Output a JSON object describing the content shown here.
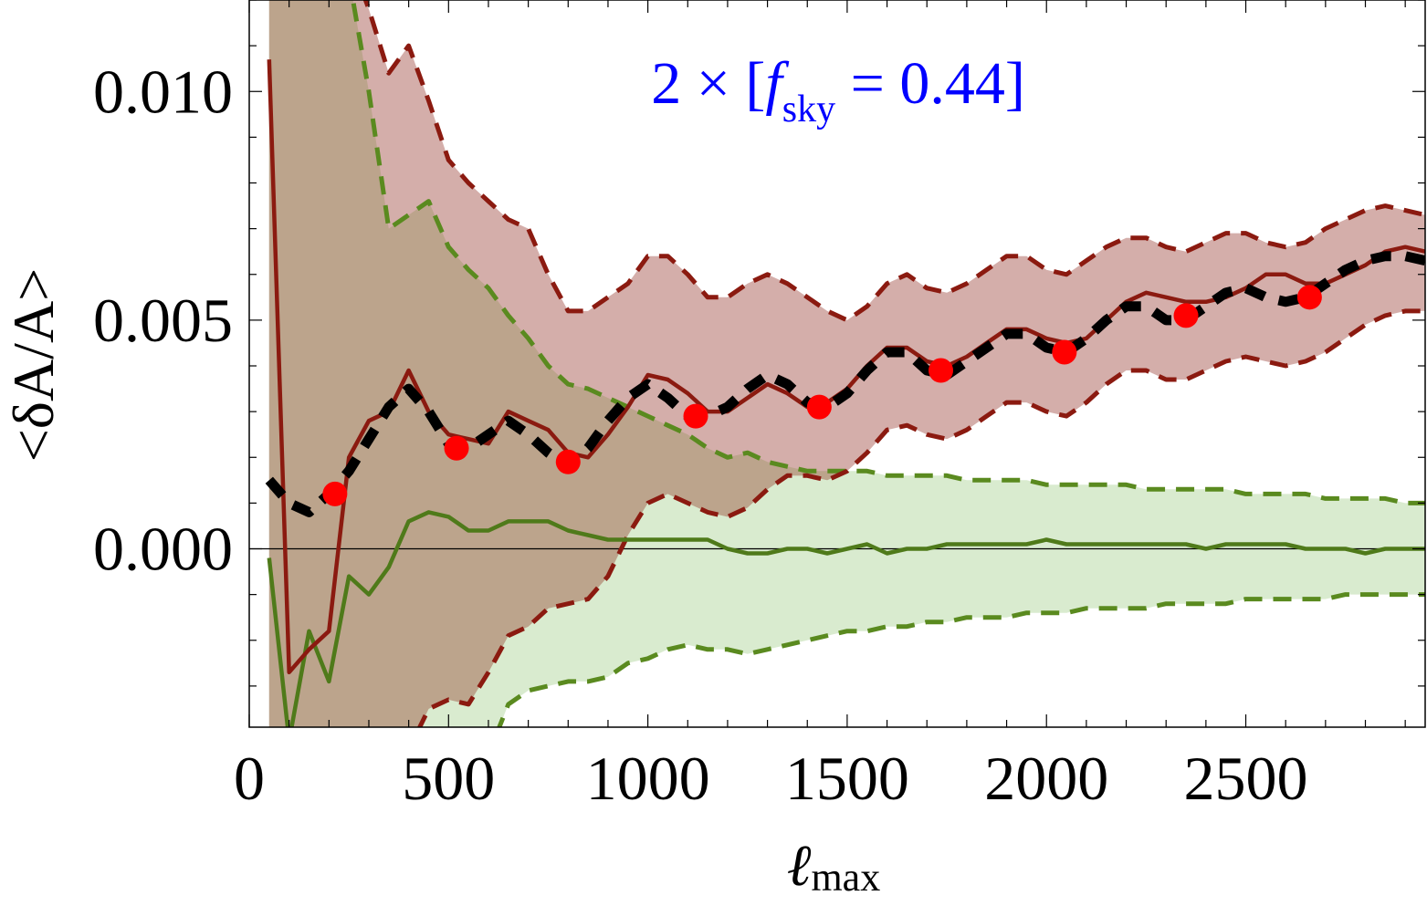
{
  "chart_data": {
    "type": "line",
    "title": "2 × [f_sky = 0.44]",
    "title_parts": {
      "prefix": "2 × [",
      "f": "f",
      "sub": "sky",
      "suffix": " = 0.44]"
    },
    "xlabel": "ℓ_max",
    "xlabel_parts": {
      "main": "ℓ",
      "sub": "max"
    },
    "ylabel": "<δA/A>",
    "xlim": [
      0,
      2950
    ],
    "ylim": [
      -0.0039,
      0.012
    ],
    "x_ticks": [
      0,
      500,
      1000,
      1500,
      2000,
      2500
    ],
    "x_tick_labels": [
      "0",
      "500",
      "1000",
      "1500",
      "2000",
      "2500"
    ],
    "y_ticks": [
      0.0,
      0.005,
      0.01
    ],
    "y_tick_labels": [
      "0.000",
      "0.005",
      "0.010"
    ],
    "grid": false,
    "zero_line": true,
    "colors": {
      "red_line": "#8b1a10",
      "red_band": "#d4aeaa",
      "green_line": "#4f7a1a",
      "green_dash": "#5a8a1f",
      "green_band": "#d9ebcf",
      "overlap_band": "#bca48c",
      "title": "#0000ff",
      "points": "#ff0000",
      "black_dash": "#000000"
    },
    "series": [
      {
        "style": "solid-dark-red",
        "x": [
          50,
          100,
          150,
          200,
          250,
          300,
          350,
          400,
          450,
          500,
          550,
          600,
          650,
          700,
          750,
          800,
          850,
          900,
          950,
          1000,
          1050,
          1100,
          1150,
          1200,
          1250,
          1300,
          1350,
          1400,
          1450,
          1500,
          1550,
          1600,
          1650,
          1700,
          1750,
          1800,
          1850,
          1900,
          1950,
          2000,
          2050,
          2100,
          2150,
          2200,
          2250,
          2300,
          2350,
          2400,
          2450,
          2500,
          2550,
          2600,
          2650,
          2700,
          2750,
          2800,
          2850,
          2900,
          2950
        ],
        "y": [
          0.0107,
          -0.0027,
          -0.0022,
          -0.0018,
          0.002,
          0.0028,
          0.003,
          0.0039,
          0.003,
          0.0025,
          0.0024,
          0.0023,
          0.003,
          0.0028,
          0.0026,
          0.0021,
          0.002,
          0.0025,
          0.0031,
          0.0038,
          0.0037,
          0.0034,
          0.003,
          0.003,
          0.0033,
          0.0036,
          0.0034,
          0.0031,
          0.0032,
          0.0035,
          0.004,
          0.0044,
          0.0044,
          0.0041,
          0.004,
          0.0042,
          0.0045,
          0.0048,
          0.0048,
          0.0046,
          0.0045,
          0.0046,
          0.005,
          0.0054,
          0.0056,
          0.0055,
          0.0054,
          0.0054,
          0.0055,
          0.0057,
          0.006,
          0.006,
          0.0058,
          0.0058,
          0.006,
          0.0062,
          0.0065,
          0.0066,
          0.0065
        ]
      },
      {
        "style": "solid-green",
        "x": [
          50,
          100,
          150,
          200,
          250,
          300,
          350,
          400,
          450,
          500,
          550,
          600,
          650,
          700,
          750,
          800,
          850,
          900,
          950,
          1000,
          1050,
          1100,
          1150,
          1200,
          1250,
          1300,
          1350,
          1400,
          1450,
          1500,
          1550,
          1600,
          1650,
          1700,
          1750,
          1800,
          1850,
          1900,
          1950,
          2000,
          2050,
          2100,
          2150,
          2200,
          2250,
          2300,
          2350,
          2400,
          2450,
          2500,
          2550,
          2600,
          2650,
          2700,
          2750,
          2800,
          2850,
          2900,
          2950
        ],
        "y": [
          -0.0002,
          -0.0042,
          -0.0018,
          -0.0029,
          -0.0006,
          -0.001,
          -0.0004,
          0.0006,
          0.0008,
          0.0007,
          0.0004,
          0.0004,
          0.0006,
          0.0006,
          0.0006,
          0.0004,
          0.0003,
          0.0002,
          0.0002,
          0.0002,
          0.0002,
          0.0002,
          0.0002,
          0.0,
          -0.0001,
          -0.0001,
          0.0,
          0.0,
          -0.0001,
          0.0,
          0.0001,
          -0.0001,
          0.0,
          0.0,
          0.0001,
          0.0001,
          0.0001,
          0.0001,
          0.0001,
          0.0002,
          0.0001,
          0.0001,
          0.0001,
          0.0001,
          0.0001,
          0.0001,
          0.0001,
          0.0,
          0.0001,
          0.0001,
          0.0001,
          0.0001,
          0.0,
          0.0,
          0.0,
          -0.0001,
          0.0,
          0.0,
          0.0
        ]
      },
      {
        "style": "dashed-black",
        "x": [
          50,
          100,
          150,
          200,
          250,
          300,
          350,
          400,
          450,
          500,
          550,
          600,
          650,
          700,
          750,
          800,
          850,
          900,
          950,
          1000,
          1050,
          1100,
          1150,
          1200,
          1250,
          1300,
          1350,
          1400,
          1450,
          1500,
          1550,
          1600,
          1650,
          1700,
          1750,
          1800,
          1850,
          1900,
          1950,
          2000,
          2050,
          2100,
          2150,
          2200,
          2250,
          2300,
          2350,
          2400,
          2450,
          2500,
          2550,
          2600,
          2650,
          2700,
          2750,
          2800,
          2850,
          2900,
          2950
        ],
        "y": [
          0.0015,
          0.001,
          0.0008,
          0.0012,
          0.0017,
          0.0024,
          0.0031,
          0.0035,
          0.003,
          0.0023,
          0.0022,
          0.0025,
          0.0028,
          0.0025,
          0.0021,
          0.0018,
          0.0022,
          0.0028,
          0.0033,
          0.0036,
          0.0033,
          0.0029,
          0.0029,
          0.0031,
          0.0035,
          0.0038,
          0.0036,
          0.0032,
          0.0031,
          0.0034,
          0.0039,
          0.0043,
          0.0043,
          0.0039,
          0.0038,
          0.0041,
          0.0044,
          0.0047,
          0.0047,
          0.0044,
          0.0043,
          0.0046,
          0.005,
          0.0053,
          0.0053,
          0.005,
          0.005,
          0.0053,
          0.0056,
          0.0057,
          0.0055,
          0.0054,
          0.0055,
          0.0058,
          0.0061,
          0.0063,
          0.0064,
          0.0064,
          0.0063
        ]
      },
      {
        "style": "dashed-red-upper",
        "x": [
          50,
          100,
          150,
          200,
          250,
          300,
          350,
          400,
          450,
          500,
          550,
          600,
          650,
          700,
          750,
          800,
          850,
          900,
          950,
          1000,
          1050,
          1100,
          1150,
          1200,
          1250,
          1300,
          1350,
          1400,
          1450,
          1500,
          1550,
          1600,
          1650,
          1700,
          1750,
          1800,
          1850,
          1900,
          1950,
          2000,
          2050,
          2100,
          2150,
          2200,
          2250,
          2300,
          2350,
          2400,
          2450,
          2500,
          2550,
          2600,
          2650,
          2700,
          2750,
          2800,
          2850,
          2900,
          2950
        ],
        "y": [
          0.013,
          0.013,
          0.013,
          0.013,
          0.013,
          0.0118,
          0.0104,
          0.011,
          0.0098,
          0.0085,
          0.008,
          0.0076,
          0.0072,
          0.007,
          0.006,
          0.0052,
          0.0052,
          0.0055,
          0.0058,
          0.0064,
          0.0064,
          0.006,
          0.0055,
          0.0055,
          0.0058,
          0.006,
          0.0058,
          0.0055,
          0.0052,
          0.005,
          0.0053,
          0.0058,
          0.006,
          0.0057,
          0.0056,
          0.0058,
          0.0061,
          0.0064,
          0.0064,
          0.0061,
          0.006,
          0.0063,
          0.0066,
          0.0068,
          0.0068,
          0.0066,
          0.0065,
          0.0067,
          0.0069,
          0.0069,
          0.0067,
          0.0066,
          0.0067,
          0.007,
          0.0072,
          0.0074,
          0.0075,
          0.0074,
          0.0073
        ]
      },
      {
        "style": "dashed-red-lower",
        "x": [
          50,
          100,
          150,
          200,
          250,
          300,
          350,
          400,
          450,
          500,
          550,
          600,
          650,
          700,
          750,
          800,
          850,
          900,
          950,
          1000,
          1050,
          1100,
          1150,
          1200,
          1250,
          1300,
          1350,
          1400,
          1450,
          1500,
          1550,
          1600,
          1650,
          1700,
          1750,
          1800,
          1850,
          1900,
          1950,
          2000,
          2050,
          2100,
          2150,
          2200,
          2250,
          2300,
          2350,
          2400,
          2450,
          2500,
          2550,
          2600,
          2650,
          2700,
          2750,
          2800,
          2850,
          2900,
          2950
        ],
        "y": [
          -0.006,
          -0.006,
          -0.006,
          -0.006,
          -0.006,
          -0.006,
          -0.0055,
          -0.0044,
          -0.0035,
          -0.0033,
          -0.0034,
          -0.0027,
          -0.0019,
          -0.0017,
          -0.0013,
          -0.0012,
          -0.0011,
          -0.0006,
          0.0003,
          0.001,
          0.0012,
          0.001,
          0.0008,
          0.0007,
          0.0009,
          0.0013,
          0.0016,
          0.0016,
          0.0015,
          0.0017,
          0.0021,
          0.0026,
          0.0027,
          0.0025,
          0.0024,
          0.0026,
          0.0029,
          0.0032,
          0.0032,
          0.003,
          0.0029,
          0.0032,
          0.0036,
          0.0039,
          0.0039,
          0.0037,
          0.0037,
          0.0039,
          0.0041,
          0.0042,
          0.0041,
          0.004,
          0.0041,
          0.0043,
          0.0046,
          0.0049,
          0.0051,
          0.0052,
          0.0052
        ]
      },
      {
        "style": "dashed-green-upper",
        "x": [
          50,
          100,
          150,
          200,
          250,
          300,
          350,
          400,
          450,
          500,
          550,
          600,
          650,
          700,
          750,
          800,
          850,
          900,
          950,
          1000,
          1050,
          1100,
          1150,
          1200,
          1250,
          1300,
          1350,
          1400,
          1450,
          1500,
          1550,
          1600,
          1650,
          1700,
          1750,
          1800,
          1850,
          1900,
          1950,
          2000,
          2050,
          2100,
          2150,
          2200,
          2250,
          2300,
          2350,
          2400,
          2450,
          2500,
          2550,
          2600,
          2650,
          2700,
          2750,
          2800,
          2850,
          2900,
          2950
        ],
        "y": [
          0.013,
          0.013,
          0.013,
          0.013,
          0.0125,
          0.01,
          0.007,
          0.0073,
          0.0076,
          0.0066,
          0.0061,
          0.0057,
          0.0051,
          0.0046,
          0.004,
          0.0036,
          0.0035,
          0.0033,
          0.0031,
          0.0029,
          0.0027,
          0.0025,
          0.0022,
          0.002,
          0.0021,
          0.0019,
          0.0018,
          0.0017,
          0.0017,
          0.0017,
          0.0017,
          0.0016,
          0.0016,
          0.0016,
          0.0016,
          0.0015,
          0.0015,
          0.0015,
          0.0015,
          0.0014,
          0.0014,
          0.0014,
          0.0014,
          0.0014,
          0.0013,
          0.0013,
          0.0013,
          0.0013,
          0.0013,
          0.0012,
          0.0012,
          0.0012,
          0.0012,
          0.0011,
          0.0011,
          0.0011,
          0.0011,
          0.001,
          0.001
        ]
      },
      {
        "style": "dashed-green-lower",
        "x": [
          50,
          100,
          150,
          200,
          250,
          300,
          350,
          400,
          450,
          500,
          550,
          600,
          650,
          700,
          750,
          800,
          850,
          900,
          950,
          1000,
          1050,
          1100,
          1150,
          1200,
          1250,
          1300,
          1350,
          1400,
          1450,
          1500,
          1550,
          1600,
          1650,
          1700,
          1750,
          1800,
          1850,
          1900,
          1950,
          2000,
          2050,
          2100,
          2150,
          2200,
          2250,
          2300,
          2350,
          2400,
          2450,
          2500,
          2550,
          2600,
          2650,
          2700,
          2750,
          2800,
          2850,
          2900,
          2950
        ],
        "y": [
          -0.006,
          -0.006,
          -0.006,
          -0.006,
          -0.006,
          -0.006,
          -0.006,
          -0.006,
          -0.006,
          -0.006,
          -0.006,
          -0.0045,
          -0.0034,
          -0.0031,
          -0.003,
          -0.0029,
          -0.0029,
          -0.0028,
          -0.0025,
          -0.0024,
          -0.0022,
          -0.0021,
          -0.0022,
          -0.0022,
          -0.0023,
          -0.0022,
          -0.0021,
          -0.002,
          -0.0019,
          -0.0018,
          -0.0018,
          -0.0017,
          -0.0017,
          -0.0016,
          -0.0016,
          -0.0015,
          -0.0015,
          -0.0015,
          -0.0014,
          -0.0014,
          -0.0014,
          -0.0013,
          -0.0013,
          -0.0013,
          -0.0013,
          -0.0012,
          -0.0012,
          -0.0012,
          -0.0012,
          -0.0011,
          -0.0011,
          -0.0011,
          -0.0011,
          -0.0011,
          -0.001,
          -0.001,
          -0.001,
          -0.001,
          -0.001
        ]
      },
      {
        "style": "red-points",
        "x": [
          215,
          520,
          800,
          1120,
          1430,
          1735,
          2045,
          2350,
          2660
        ],
        "y": [
          0.0012,
          0.0022,
          0.0019,
          0.0029,
          0.0031,
          0.0039,
          0.0043,
          0.0051,
          0.0055
        ]
      }
    ]
  }
}
